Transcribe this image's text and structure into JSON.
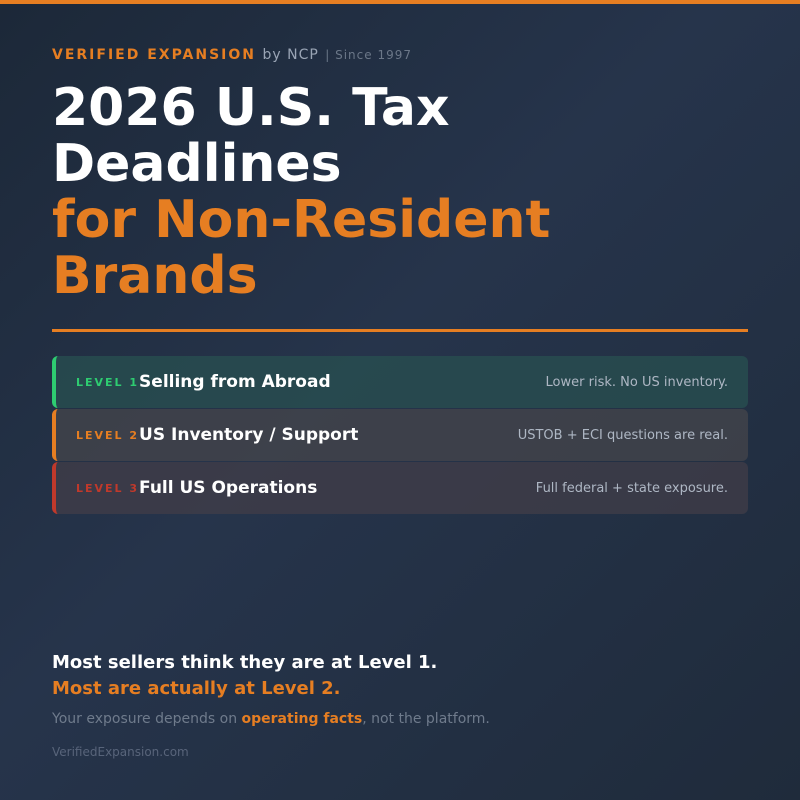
{
  "header": {
    "brand": "VERIFIED EXPANSION",
    "by": "by NCP",
    "since": "| Since 1997"
  },
  "title": {
    "line1": "2026 U.S. Tax Deadlines",
    "line2": "for Non-Resident Brands"
  },
  "levels": [
    {
      "label": "LEVEL 1",
      "name": "Selling from Abroad",
      "note": "Lower risk. No US inventory."
    },
    {
      "label": "LEVEL 2",
      "name": "US Inventory / Support",
      "note": "USTOB + ECI questions are real."
    },
    {
      "label": "LEVEL 3",
      "name": "Full US Operations",
      "note": "Full federal + state exposure."
    }
  ],
  "footer": {
    "claim": "Most sellers think they are at Level 1.",
    "reality": "Most are actually at Level 2.",
    "note_start": "Your exposure depends on ",
    "note_emphasis": "operating facts",
    "note_end": ", not the platform.",
    "site": "VerifiedExpansion.com"
  }
}
